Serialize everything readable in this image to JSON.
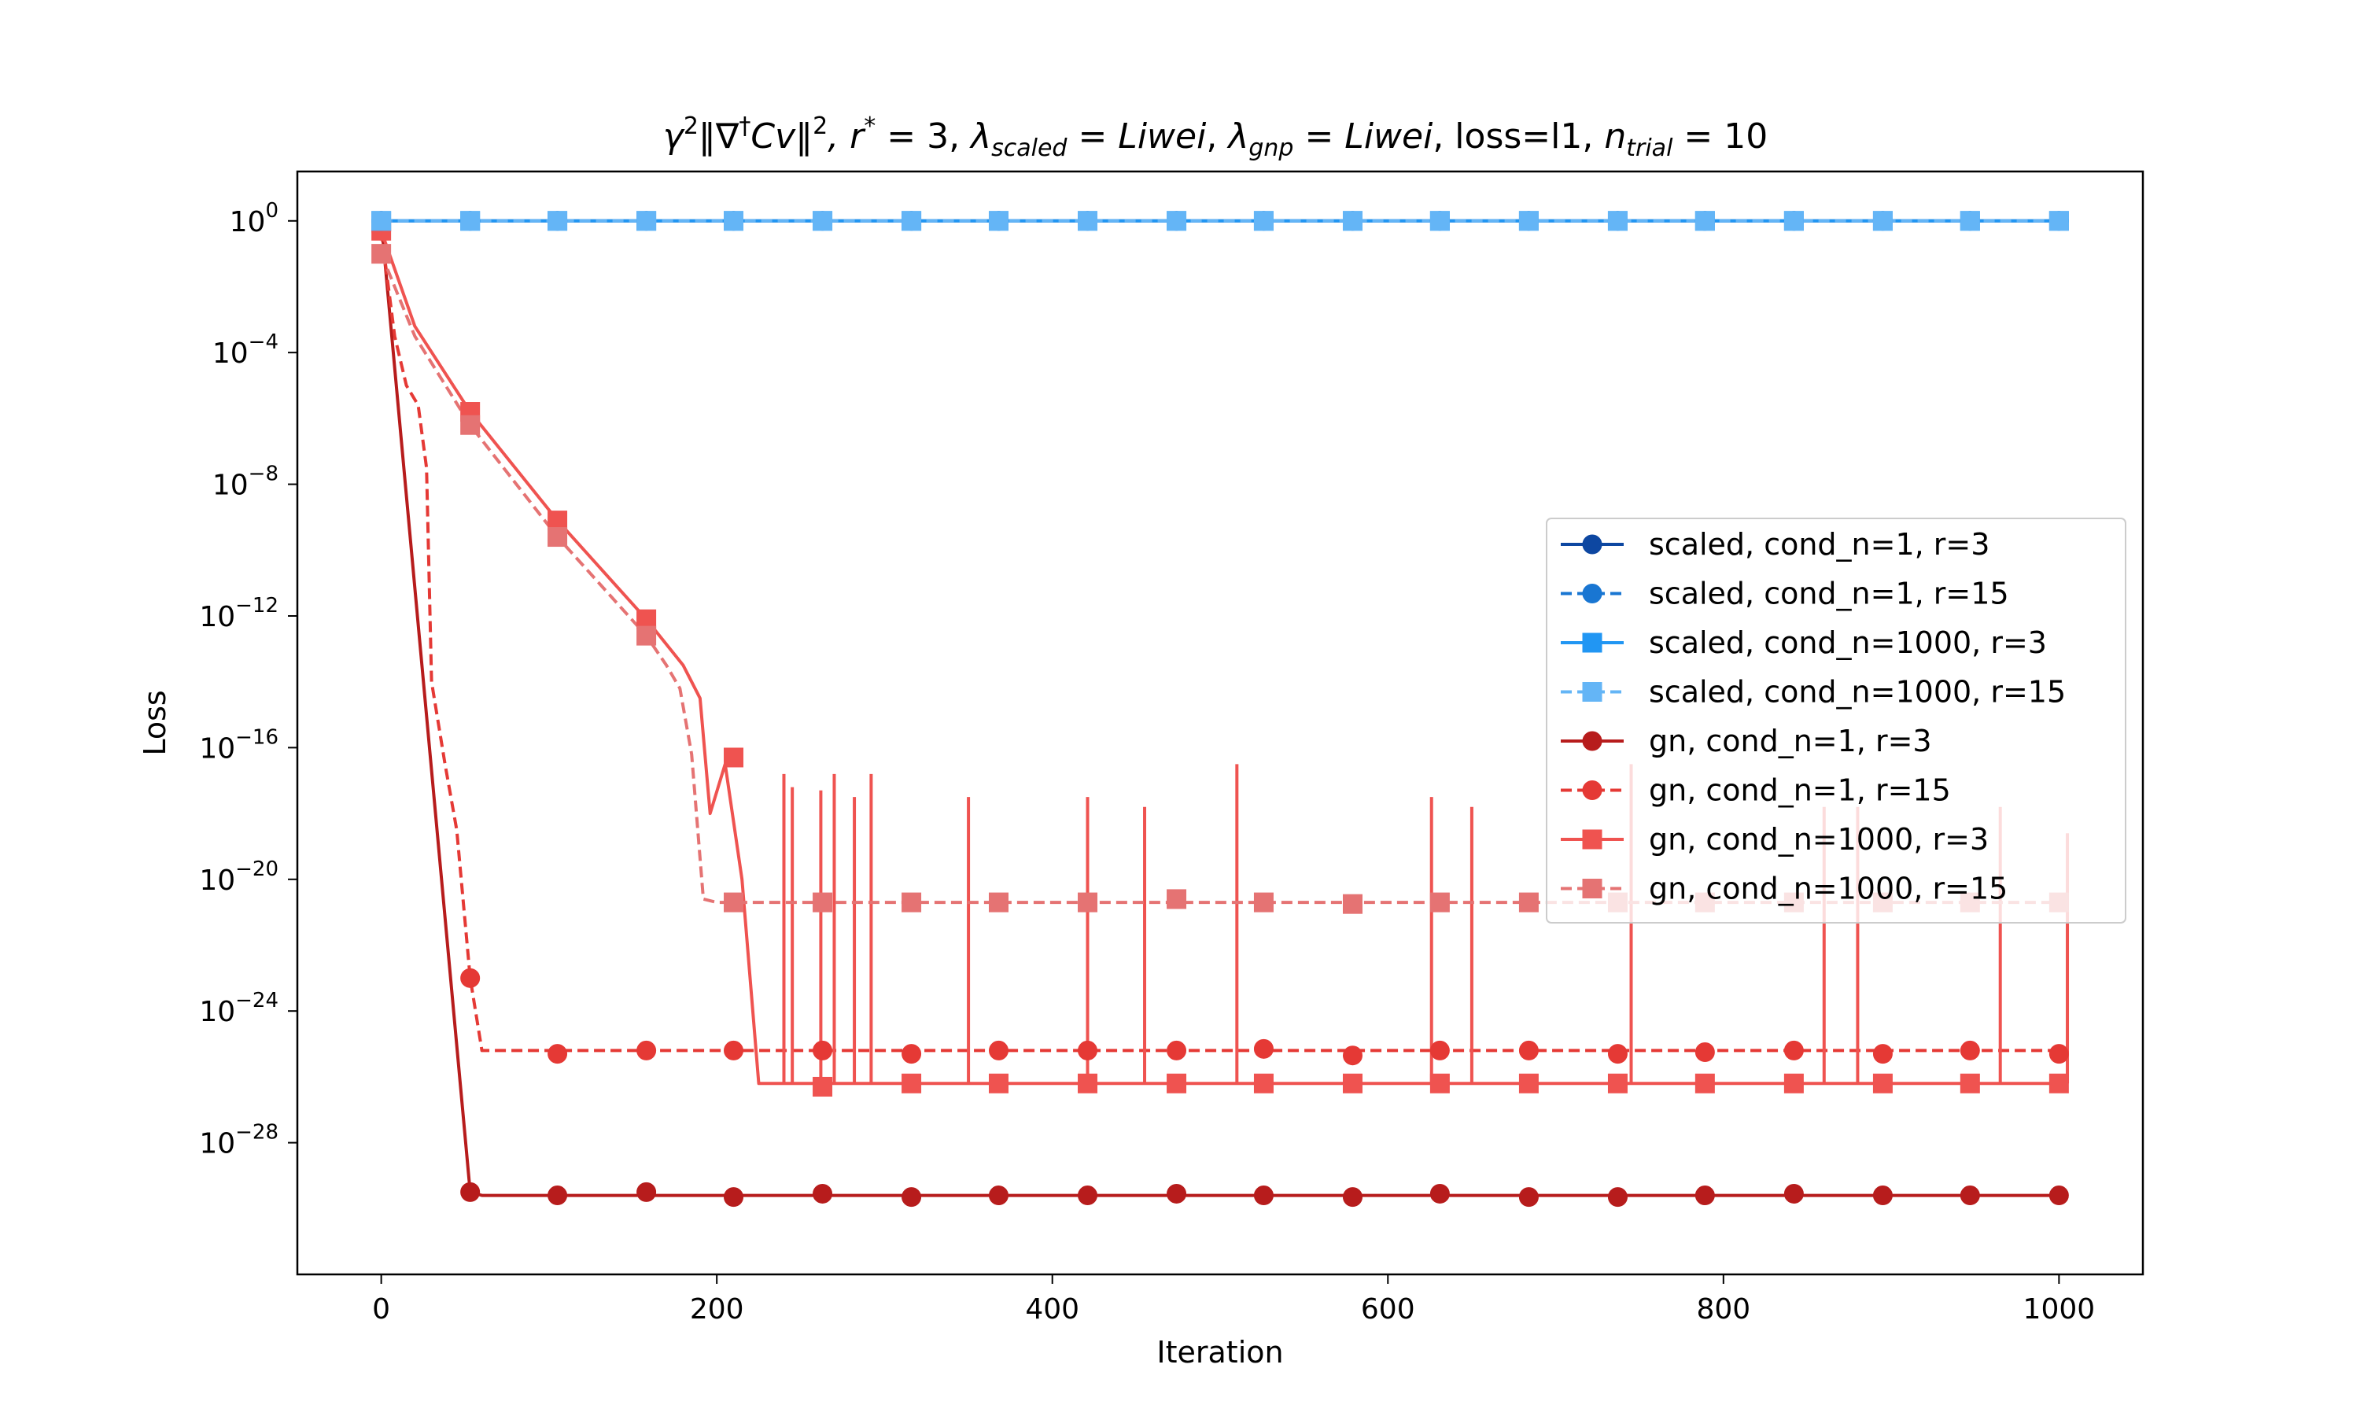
{
  "chart_data": {
    "type": "line",
    "title": "γ²‖∇†Cv‖², r* = 3, λscaled = Liwei, λgnp = Liwei, loss=l1, ntrial = 10",
    "title_parts": {
      "gamma": "γ",
      "gamma_sup": "2",
      "norm_expr": "‖∇",
      "dagger": "†",
      "cv": "Cv",
      "norm_close": "‖",
      "norm_sup": "2",
      "r_part": ", r",
      "r_sup": "*",
      "r_val": " = 3, ",
      "lambda": "λ",
      "lambda1_sub": "scaled",
      "lambda1_val": " = Liwei",
      "comma1": ", ",
      "lambda2_sub": "gnp",
      "lambda2_val": " = Liwei",
      "loss_part": ", loss=l1, ",
      "n": "n",
      "n_sub": "trial",
      "n_val": " = 10"
    },
    "xlabel": "Iteration",
    "ylabel": "Loss",
    "xlim": [
      -50,
      1050
    ],
    "ylim_log10": [
      -32,
      1.5
    ],
    "y_scale": "log",
    "grid": false,
    "legend_placement": "center-right",
    "x_ticks": [
      {
        "value": 0,
        "label": "0"
      },
      {
        "value": 200,
        "label": "200"
      },
      {
        "value": 400,
        "label": "400"
      },
      {
        "value": 600,
        "label": "600"
      },
      {
        "value": 800,
        "label": "800"
      },
      {
        "value": 1000,
        "label": "1000"
      }
    ],
    "y_ticks": [
      {
        "exp": 0,
        "base": "10",
        "sup": "0"
      },
      {
        "exp": -4,
        "base": "10",
        "sup": "−4"
      },
      {
        "exp": -8,
        "base": "10",
        "sup": "−8"
      },
      {
        "exp": -12,
        "base": "10",
        "sup": "−12"
      },
      {
        "exp": -16,
        "base": "10",
        "sup": "−16"
      },
      {
        "exp": -20,
        "base": "10",
        "sup": "−20"
      },
      {
        "exp": -24,
        "base": "10",
        "sup": "−24"
      },
      {
        "exp": -28,
        "base": "10",
        "sup": "−28"
      }
    ],
    "marker_x": [
      0,
      53,
      105,
      158,
      210,
      263,
      316,
      368,
      421,
      474,
      526,
      579,
      631,
      684,
      737,
      789,
      842,
      895,
      947,
      1000
    ],
    "series": [
      {
        "name": "scaled, cond_n=1, r=3",
        "color": "#0d47a1",
        "dash": "solid",
        "marker": "circle",
        "points": [
          [
            0,
            0
          ],
          [
            1000,
            0
          ]
        ],
        "marker_values": [
          0,
          0,
          0,
          0,
          0,
          0,
          0,
          0,
          0,
          0,
          0,
          0,
          0,
          0,
          0,
          0,
          0,
          0,
          0,
          0
        ]
      },
      {
        "name": "scaled, cond_n=1, r=15",
        "color": "#1976d2",
        "dash": "dashed",
        "marker": "circle",
        "points": [
          [
            0,
            0
          ],
          [
            1000,
            0
          ]
        ],
        "marker_values": [
          0,
          0,
          0,
          0,
          0,
          0,
          0,
          0,
          0,
          0,
          0,
          0,
          0,
          0,
          0,
          0,
          0,
          0,
          0,
          0
        ]
      },
      {
        "name": "scaled, cond_n=1000, r=3",
        "color": "#2196f3",
        "dash": "solid",
        "marker": "square",
        "points": [
          [
            0,
            0
          ],
          [
            1000,
            0
          ]
        ],
        "marker_values": [
          0,
          0,
          0,
          0,
          0,
          0,
          0,
          0,
          0,
          0,
          0,
          0,
          0,
          0,
          0,
          0,
          0,
          0,
          0,
          0
        ]
      },
      {
        "name": "scaled, cond_n=1000, r=15",
        "color": "#64b5f6",
        "dash": "dashed",
        "marker": "square",
        "points": [
          [
            0,
            0
          ],
          [
            1000,
            0
          ]
        ],
        "marker_values": [
          0,
          0,
          0,
          0,
          0,
          0,
          0,
          0,
          0,
          0,
          0,
          0,
          0,
          0,
          0,
          0,
          0,
          0,
          0,
          0
        ]
      },
      {
        "name": "gn, cond_n=1, r=3",
        "color": "#b71c1c",
        "dash": "solid",
        "marker": "circle",
        "points": [
          [
            0,
            0
          ],
          [
            53,
            -29.5
          ],
          [
            60,
            -29.6
          ],
          [
            1000,
            -29.6
          ]
        ],
        "marker_values": [
          0,
          -29.5,
          -29.6,
          -29.5,
          -29.65,
          -29.55,
          -29.65,
          -29.6,
          -29.6,
          -29.55,
          -29.6,
          -29.65,
          -29.55,
          -29.65,
          -29.65,
          -29.6,
          -29.55,
          -29.6,
          -29.6,
          -29.6
        ]
      },
      {
        "name": "gn, cond_n=1, r=15",
        "color": "#e53935",
        "dash": "dashed",
        "marker": "circle",
        "points": [
          [
            0,
            -0.3
          ],
          [
            8,
            -3.5
          ],
          [
            15,
            -5
          ],
          [
            22,
            -5.6
          ],
          [
            27,
            -7.5
          ],
          [
            30,
            -14
          ],
          [
            38,
            -16.5
          ],
          [
            45,
            -18.5
          ],
          [
            53,
            -23
          ],
          [
            60,
            -25.2
          ],
          [
            1000,
            -25.2
          ]
        ],
        "marker_values": [
          -0.3,
          -23,
          -25.3,
          -25.2,
          -25.2,
          -25.2,
          -25.3,
          -25.2,
          -25.2,
          -25.2,
          -25.15,
          -25.35,
          -25.2,
          -25.2,
          -25.3,
          -25.25,
          -25.2,
          -25.3,
          -25.2,
          -25.3
        ]
      },
      {
        "name": "gn, cond_n=1000, r=3",
        "color": "#ef5350",
        "dash": "solid",
        "marker": "square",
        "points": [
          [
            0,
            -0.3
          ],
          [
            20,
            -3.2
          ],
          [
            53,
            -5.8
          ],
          [
            105,
            -9.1
          ],
          [
            158,
            -12.1
          ],
          [
            180,
            -13.5
          ],
          [
            190,
            -14.5
          ],
          [
            196,
            -18
          ],
          [
            205,
            -16.5
          ],
          [
            215,
            -20
          ],
          [
            225,
            -26.2
          ],
          [
            240,
            -26.2
          ],
          [
            260,
            -26.2
          ],
          [
            300,
            -26.2
          ],
          [
            1000,
            -26.2
          ]
        ],
        "marker_values": [
          -0.3,
          -5.8,
          -9.1,
          -12.1,
          -16.3,
          -26.3,
          -26.2,
          -26.2,
          -26.2,
          -26.2,
          -26.2,
          -26.2,
          -26.2,
          -26.2,
          -26.2,
          -26.2,
          -26.2,
          -26.2,
          -26.2,
          -26.2
        ],
        "spikes": [
          [
            240,
            -16.8
          ],
          [
            245,
            -17.2
          ],
          [
            262,
            -17.3
          ],
          [
            270,
            -16.8
          ],
          [
            282,
            -17.5
          ],
          [
            292,
            -16.8
          ],
          [
            350,
            -17.5
          ],
          [
            421,
            -17.5
          ],
          [
            455,
            -17.8
          ],
          [
            510,
            -16.5
          ],
          [
            626,
            -17.5
          ],
          [
            650,
            -17.8
          ],
          [
            745,
            -16.5
          ],
          [
            860,
            -17.8
          ],
          [
            880,
            -17.8
          ],
          [
            965,
            -17.8
          ],
          [
            1005,
            -18.6
          ]
        ]
      },
      {
        "name": "gn, cond_n=1000, r=15",
        "color": "#e57373",
        "dash": "dashed",
        "marker": "square",
        "points": [
          [
            0,
            -1
          ],
          [
            20,
            -3.5
          ],
          [
            53,
            -6.2
          ],
          [
            105,
            -9.6
          ],
          [
            158,
            -12.6
          ],
          [
            170,
            -13.5
          ],
          [
            178,
            -14.2
          ],
          [
            185,
            -16.2
          ],
          [
            192,
            -20.6
          ],
          [
            200,
            -20.7
          ],
          [
            1000,
            -20.7
          ]
        ],
        "marker_values": [
          -1,
          -6.2,
          -9.6,
          -12.6,
          -20.7,
          -20.7,
          -20.7,
          -20.7,
          -20.7,
          -20.6,
          -20.7,
          -20.75,
          -20.7,
          -20.7,
          -20.7,
          -20.7,
          -20.7,
          -20.7,
          -20.7,
          -20.7
        ]
      }
    ]
  }
}
